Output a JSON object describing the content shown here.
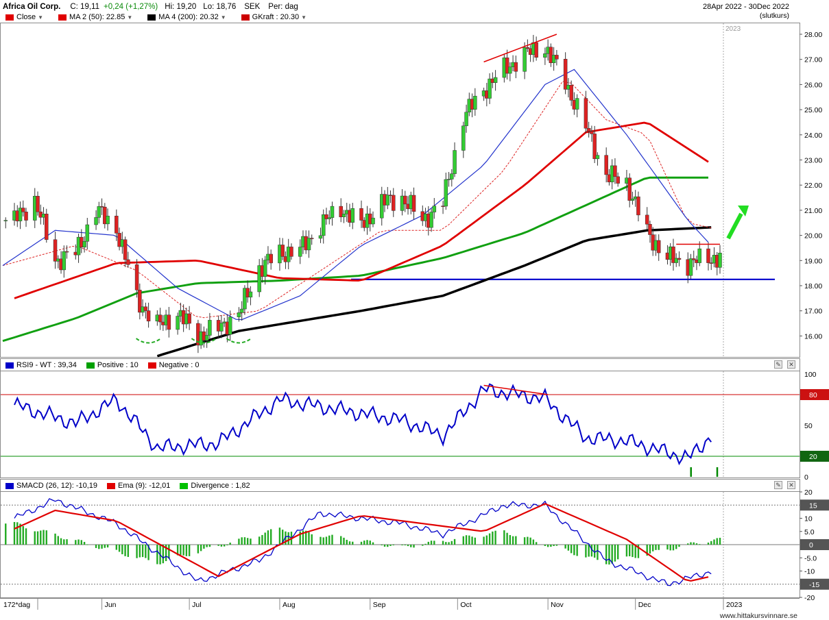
{
  "header": {
    "title": "Africa Oil Corp.",
    "close": "C: 19,11",
    "change": "+0,24 (+1,27%)",
    "high": "Hi: 19,20",
    "low": "Lo: 18,76",
    "currency": "SEK",
    "period": "Per: dag",
    "date_range": "28Apr 2022 - 30Dec 2022",
    "price_type": "(slutkurs)"
  },
  "price_legend": [
    {
      "label": "Close",
      "color": "#e00000",
      "dropdown": true
    },
    {
      "label": "MA 2 (50): 22.85",
      "color": "#e00000",
      "dropdown": true
    },
    {
      "label": "MA 4 (200): 20.32",
      "color": "#000000",
      "dropdown": true
    },
    {
      "label": "GKraft : 20.30",
      "color": "#e00000",
      "dropdown": true
    }
  ],
  "rsi_legend": [
    {
      "label": "RSI9 - WT : 39,34",
      "color": "#0000c8"
    },
    {
      "label": "Positive : 10",
      "color": "#00a000"
    },
    {
      "label": "Negative : 0",
      "color": "#e00000"
    }
  ],
  "macd_legend": [
    {
      "label": "SMACD (26, 12): -10,19",
      "color": "#0000c8"
    },
    {
      "label": "Ema (9): -12,01",
      "color": "#e00000"
    },
    {
      "label": "Divergence : 1,82",
      "color": "#00c000"
    }
  ],
  "year_marker": "2023",
  "x_axis": {
    "period_label": "172*dag",
    "months": [
      "Jun",
      "Jul",
      "Aug",
      "Sep",
      "Oct",
      "Nov",
      "Dec",
      "2023"
    ]
  },
  "price_axis": [
    "28.00",
    "27.00",
    "26.00",
    "25.00",
    "24.00",
    "23.00",
    "22.00",
    "21.00",
    "20.00",
    "19.00",
    "18.00",
    "17.00",
    "16.00"
  ],
  "rsi_axis": [
    "100",
    "80",
    "50",
    "20",
    "0"
  ],
  "rsi_levels": {
    "upper": "80",
    "lower": "20"
  },
  "macd_axis": [
    "20",
    "15",
    "10",
    "5.0",
    "0",
    "-5.0",
    "-10",
    "-15",
    "-20"
  ],
  "macd_levels": {
    "upper": "15",
    "zero": "0",
    "lower": "-15"
  },
  "footer": "www.hittakursvinnare.se",
  "colors": {
    "up_candle": "#33cc33",
    "down_candle": "#dd2222",
    "ma50": "#e00000",
    "ma200": "#000000",
    "ma_green": "#11a011",
    "ma_blue": "#2233cc",
    "support": "#0000cc"
  },
  "chart_data": [
    {
      "type": "line",
      "title": "Africa Oil Corp.",
      "panel": "price",
      "x_range": [
        "2022-04-28",
        "2022-12-30"
      ],
      "ylim": [
        15.3,
        28.4
      ],
      "series": [
        {
          "name": "Close",
          "values": [
            {
              "x": "2022-05-02",
              "y": 20.6
            },
            {
              "x": "2022-05-09",
              "y": 21.4
            },
            {
              "x": "2022-05-16",
              "y": 19.0
            },
            {
              "x": "2022-05-23",
              "y": 19.3
            },
            {
              "x": "2022-05-30",
              "y": 21.0
            },
            {
              "x": "2022-06-06",
              "y": 20.3
            },
            {
              "x": "2022-06-13",
              "y": 17.5
            },
            {
              "x": "2022-06-20",
              "y": 16.4
            },
            {
              "x": "2022-06-27",
              "y": 16.9
            },
            {
              "x": "2022-07-04",
              "y": 16.0
            },
            {
              "x": "2022-07-11",
              "y": 16.3
            },
            {
              "x": "2022-07-18",
              "y": 16.9
            },
            {
              "x": "2022-07-25",
              "y": 18.7
            },
            {
              "x": "2022-08-01",
              "y": 19.3
            },
            {
              "x": "2022-08-08",
              "y": 19.4
            },
            {
              "x": "2022-08-15",
              "y": 20.4
            },
            {
              "x": "2022-08-22",
              "y": 21.1
            },
            {
              "x": "2022-08-29",
              "y": 20.4
            },
            {
              "x": "2022-09-05",
              "y": 21.3
            },
            {
              "x": "2022-09-12",
              "y": 21.5
            },
            {
              "x": "2022-09-19",
              "y": 20.6
            },
            {
              "x": "2022-09-26",
              "y": 21.3
            },
            {
              "x": "2022-10-03",
              "y": 24.7
            },
            {
              "x": "2022-10-10",
              "y": 25.8
            },
            {
              "x": "2022-10-17",
              "y": 26.6
            },
            {
              "x": "2022-10-24",
              "y": 27.2
            },
            {
              "x": "2022-10-31",
              "y": 27.5
            },
            {
              "x": "2022-11-07",
              "y": 26.1
            },
            {
              "x": "2022-11-14",
              "y": 24.3
            },
            {
              "x": "2022-11-21",
              "y": 22.4
            },
            {
              "x": "2022-11-28",
              "y": 22.1
            },
            {
              "x": "2022-12-05",
              "y": 20.1
            },
            {
              "x": "2022-12-12",
              "y": 19.1
            },
            {
              "x": "2022-12-19",
              "y": 18.9
            },
            {
              "x": "2022-12-27",
              "y": 19.11
            }
          ]
        },
        {
          "name": "MA 2 (50)",
          "values": [
            {
              "x": "2022-05-02",
              "y": 17.5
            },
            {
              "x": "2022-06-06",
              "y": 18.9
            },
            {
              "x": "2022-07-04",
              "y": 19.0
            },
            {
              "x": "2022-08-01",
              "y": 18.3
            },
            {
              "x": "2022-08-29",
              "y": 18.2
            },
            {
              "x": "2022-09-26",
              "y": 19.6
            },
            {
              "x": "2022-10-24",
              "y": 22.0
            },
            {
              "x": "2022-11-14",
              "y": 24.1
            },
            {
              "x": "2022-12-05",
              "y": 24.5
            },
            {
              "x": "2022-12-27",
              "y": 22.85
            }
          ]
        },
        {
          "name": "MA 4 (200)",
          "values": [
            {
              "x": "2022-06-20",
              "y": 15.2
            },
            {
              "x": "2022-07-18",
              "y": 16.2
            },
            {
              "x": "2022-08-29",
              "y": 17.0
            },
            {
              "x": "2022-09-26",
              "y": 17.6
            },
            {
              "x": "2022-10-24",
              "y": 18.8
            },
            {
              "x": "2022-11-14",
              "y": 19.8
            },
            {
              "x": "2022-12-05",
              "y": 20.2
            },
            {
              "x": "2022-12-27",
              "y": 20.32
            }
          ]
        }
      ]
    },
    {
      "type": "line",
      "panel": "rsi",
      "ylim": [
        0,
        100
      ],
      "series": [
        {
          "name": "RSI9 - WT",
          "values": [
            {
              "x": "2022-05-02",
              "y": 70
            },
            {
              "x": "2022-05-23",
              "y": 52
            },
            {
              "x": "2022-06-06",
              "y": 75
            },
            {
              "x": "2022-06-20",
              "y": 28
            },
            {
              "x": "2022-07-11",
              "y": 33
            },
            {
              "x": "2022-08-01",
              "y": 75
            },
            {
              "x": "2022-08-22",
              "y": 65
            },
            {
              "x": "2022-09-12",
              "y": 55
            },
            {
              "x": "2022-09-26",
              "y": 40
            },
            {
              "x": "2022-10-10",
              "y": 85
            },
            {
              "x": "2022-10-31",
              "y": 76
            },
            {
              "x": "2022-11-14",
              "y": 38
            },
            {
              "x": "2022-11-28",
              "y": 35
            },
            {
              "x": "2022-12-19",
              "y": 18
            },
            {
              "x": "2022-12-27",
              "y": 39.34
            }
          ]
        }
      ]
    },
    {
      "type": "line",
      "panel": "macd",
      "ylim": [
        -20,
        20
      ],
      "series": [
        {
          "name": "SMACD (26, 12)",
          "values": [
            {
              "x": "2022-05-02",
              "y": 10
            },
            {
              "x": "2022-05-16",
              "y": 17
            },
            {
              "x": "2022-06-06",
              "y": 8
            },
            {
              "x": "2022-07-04",
              "y": -14
            },
            {
              "x": "2022-07-25",
              "y": -6
            },
            {
              "x": "2022-08-15",
              "y": 12
            },
            {
              "x": "2022-09-12",
              "y": 8
            },
            {
              "x": "2022-09-26",
              "y": 4
            },
            {
              "x": "2022-10-17",
              "y": 15
            },
            {
              "x": "2022-10-31",
              "y": 15
            },
            {
              "x": "2022-11-21",
              "y": -6
            },
            {
              "x": "2022-12-12",
              "y": -15
            },
            {
              "x": "2022-12-27",
              "y": -10.19
            }
          ]
        },
        {
          "name": "Ema (9)",
          "values": [
            {
              "x": "2022-05-02",
              "y": 6
            },
            {
              "x": "2022-05-16",
              "y": 13
            },
            {
              "x": "2022-06-06",
              "y": 9
            },
            {
              "x": "2022-07-11",
              "y": -12
            },
            {
              "x": "2022-08-08",
              "y": 4
            },
            {
              "x": "2022-08-29",
              "y": 11
            },
            {
              "x": "2022-09-19",
              "y": 8
            },
            {
              "x": "2022-10-10",
              "y": 5
            },
            {
              "x": "2022-10-31",
              "y": 15.5
            },
            {
              "x": "2022-11-28",
              "y": 2
            },
            {
              "x": "2022-12-19",
              "y": -14
            },
            {
              "x": "2022-12-27",
              "y": -12.01
            }
          ]
        },
        {
          "name": "Divergence",
          "values": [
            {
              "x": "2022-05-02",
              "y": 8
            },
            {
              "x": "2022-06-20",
              "y": -7
            },
            {
              "x": "2022-08-01",
              "y": 6
            },
            {
              "x": "2022-09-12",
              "y": -1
            },
            {
              "x": "2022-10-17",
              "y": 5
            },
            {
              "x": "2022-11-21",
              "y": -7
            },
            {
              "x": "2022-12-27",
              "y": 1.82
            }
          ]
        }
      ]
    }
  ]
}
